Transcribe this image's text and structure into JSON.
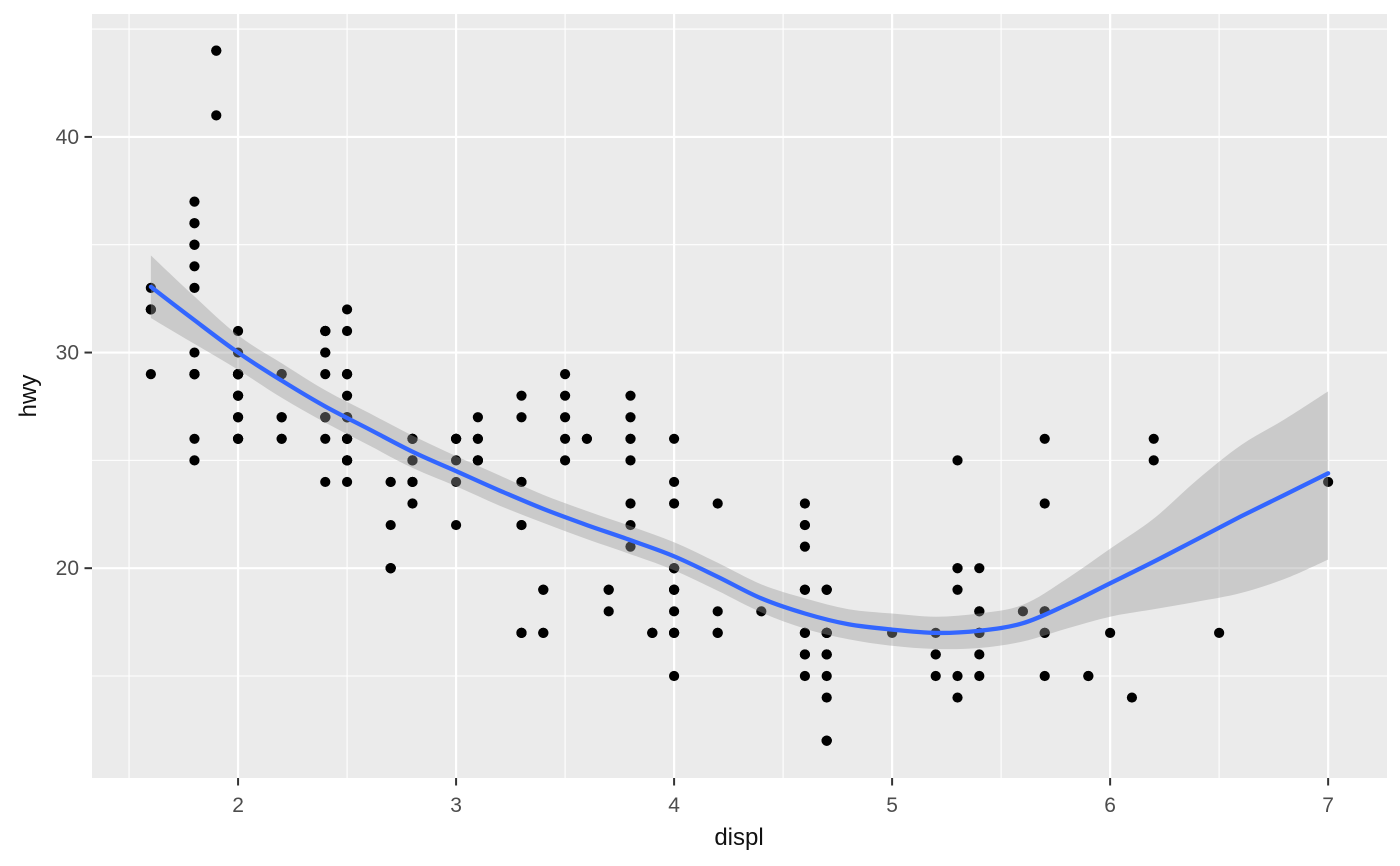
{
  "chart_data": {
    "type": "scatter",
    "title": "",
    "xlabel": "displ",
    "ylabel": "hwy",
    "xlim": [
      1.33,
      7.27
    ],
    "ylim": [
      10.27,
      45.7
    ],
    "x_ticks": [
      2,
      3,
      4,
      5,
      6,
      7
    ],
    "y_ticks": [
      20,
      30,
      40
    ],
    "x_minor_ticks": [
      1.5,
      2.5,
      3.5,
      4.5,
      5.5,
      6.5
    ],
    "y_minor_ticks": [
      15,
      25,
      35,
      45
    ],
    "grid": "major+minor white on grey panel",
    "legend": "none",
    "colors": {
      "point": "#000000",
      "smooth_line": "#3366FF",
      "confidence_band": "rgba(153,153,153,0.4)",
      "panel_background": "#EBEBEB",
      "gridline": "#FFFFFF",
      "tick_label": "#4D4D4D",
      "tick_mark": "#333333",
      "axis_title": "#111111"
    },
    "points": [
      [
        1.6,
        33
      ],
      [
        1.6,
        32
      ],
      [
        1.6,
        32
      ],
      [
        1.6,
        29
      ],
      [
        1.6,
        32
      ],
      [
        1.8,
        29
      ],
      [
        1.8,
        29
      ],
      [
        1.8,
        26
      ],
      [
        1.8,
        25
      ],
      [
        1.8,
        34
      ],
      [
        1.8,
        36
      ],
      [
        1.8,
        36
      ],
      [
        1.8,
        30
      ],
      [
        1.8,
        33
      ],
      [
        1.8,
        35
      ],
      [
        1.8,
        37
      ],
      [
        1.8,
        35
      ],
      [
        1.8,
        29
      ],
      [
        1.8,
        29
      ],
      [
        1.9,
        44
      ],
      [
        1.9,
        44
      ],
      [
        1.9,
        41
      ],
      [
        2.0,
        31
      ],
      [
        2.0,
        30
      ],
      [
        2.0,
        28
      ],
      [
        2.0,
        27
      ],
      [
        2.0,
        29
      ],
      [
        2.0,
        26
      ],
      [
        2.0,
        29
      ],
      [
        2.0,
        28
      ],
      [
        2.0,
        27
      ],
      [
        2.0,
        29
      ],
      [
        2.0,
        26
      ],
      [
        2.0,
        29
      ],
      [
        2.0,
        29
      ],
      [
        2.0,
        29
      ],
      [
        2.0,
        26
      ],
      [
        2.0,
        29
      ],
      [
        2.0,
        29
      ],
      [
        2.0,
        29
      ],
      [
        2.0,
        26
      ],
      [
        2.0,
        28
      ],
      [
        2.0,
        29
      ],
      [
        2.2,
        29
      ],
      [
        2.2,
        27
      ],
      [
        2.2,
        27
      ],
      [
        2.2,
        29
      ],
      [
        2.2,
        26
      ],
      [
        2.2,
        26
      ],
      [
        2.4,
        27
      ],
      [
        2.4,
        30
      ],
      [
        2.4,
        26
      ],
      [
        2.4,
        27
      ],
      [
        2.4,
        30
      ],
      [
        2.4,
        31
      ],
      [
        2.4,
        24
      ],
      [
        2.4,
        31
      ],
      [
        2.4,
        31
      ],
      [
        2.4,
        31
      ],
      [
        2.4,
        31
      ],
      [
        2.4,
        29
      ],
      [
        2.4,
        27
      ],
      [
        2.5,
        26
      ],
      [
        2.5,
        26
      ],
      [
        2.5,
        31
      ],
      [
        2.5,
        32
      ],
      [
        2.5,
        25
      ],
      [
        2.5,
        24
      ],
      [
        2.5,
        27
      ],
      [
        2.5,
        25
      ],
      [
        2.5,
        26
      ],
      [
        2.5,
        26
      ],
      [
        2.5,
        26
      ],
      [
        2.5,
        25
      ],
      [
        2.5,
        27
      ],
      [
        2.5,
        25
      ],
      [
        2.5,
        27
      ],
      [
        2.5,
        29
      ],
      [
        2.5,
        29
      ],
      [
        2.5,
        28
      ],
      [
        2.5,
        29
      ],
      [
        2.7,
        24
      ],
      [
        2.7,
        24
      ],
      [
        2.7,
        20
      ],
      [
        2.7,
        20
      ],
      [
        2.7,
        20
      ],
      [
        2.7,
        20
      ],
      [
        2.7,
        22
      ],
      [
        2.8,
        26
      ],
      [
        2.8,
        26
      ],
      [
        2.8,
        25
      ],
      [
        2.8,
        25
      ],
      [
        2.8,
        24
      ],
      [
        2.8,
        24
      ],
      [
        2.8,
        23
      ],
      [
        2.8,
        24
      ],
      [
        2.8,
        26
      ],
      [
        2.8,
        26
      ],
      [
        3.0,
        24
      ],
      [
        3.0,
        26
      ],
      [
        3.0,
        25
      ],
      [
        3.0,
        26
      ],
      [
        3.0,
        26
      ],
      [
        3.0,
        26
      ],
      [
        3.0,
        22
      ],
      [
        3.1,
        27
      ],
      [
        3.1,
        25
      ],
      [
        3.1,
        25
      ],
      [
        3.1,
        25
      ],
      [
        3.1,
        26
      ],
      [
        3.1,
        26
      ],
      [
        3.3,
        22
      ],
      [
        3.3,
        22
      ],
      [
        3.3,
        24
      ],
      [
        3.3,
        24
      ],
      [
        3.3,
        17
      ],
      [
        3.3,
        28
      ],
      [
        3.3,
        17
      ],
      [
        3.3,
        17
      ],
      [
        3.3,
        27
      ],
      [
        3.4,
        19
      ],
      [
        3.4,
        17
      ],
      [
        3.4,
        17
      ],
      [
        3.4,
        19
      ],
      [
        3.5,
        29
      ],
      [
        3.5,
        27
      ],
      [
        3.5,
        26
      ],
      [
        3.5,
        25
      ],
      [
        3.5,
        28
      ],
      [
        3.6,
        26
      ],
      [
        3.6,
        26
      ],
      [
        3.7,
        19
      ],
      [
        3.7,
        18
      ],
      [
        3.7,
        19
      ],
      [
        3.8,
        22
      ],
      [
        3.8,
        21
      ],
      [
        3.8,
        23
      ],
      [
        3.8,
        26
      ],
      [
        3.8,
        25
      ],
      [
        3.8,
        26
      ],
      [
        3.8,
        27
      ],
      [
        3.8,
        28
      ],
      [
        3.9,
        17
      ],
      [
        3.9,
        17
      ],
      [
        3.9,
        17
      ],
      [
        4.0,
        23
      ],
      [
        4.0,
        17
      ],
      [
        4.0,
        19
      ],
      [
        4.0,
        17
      ],
      [
        4.0,
        19
      ],
      [
        4.0,
        26
      ],
      [
        4.0,
        24
      ],
      [
        4.0,
        20
      ],
      [
        4.0,
        15
      ],
      [
        4.0,
        17
      ],
      [
        4.0,
        19
      ],
      [
        4.0,
        20
      ],
      [
        4.0,
        20
      ],
      [
        4.0,
        18
      ],
      [
        4.0,
        20
      ],
      [
        4.2,
        23
      ],
      [
        4.2,
        17
      ],
      [
        4.2,
        17
      ],
      [
        4.2,
        18
      ],
      [
        4.4,
        18
      ],
      [
        4.6,
        17
      ],
      [
        4.6,
        19
      ],
      [
        4.6,
        16
      ],
      [
        4.6,
        16
      ],
      [
        4.6,
        17
      ],
      [
        4.6,
        21
      ],
      [
        4.6,
        22
      ],
      [
        4.6,
        23
      ],
      [
        4.6,
        22
      ],
      [
        4.6,
        15
      ],
      [
        4.6,
        19
      ],
      [
        4.7,
        19
      ],
      [
        4.7,
        19
      ],
      [
        4.7,
        12
      ],
      [
        4.7,
        17
      ],
      [
        4.7,
        16
      ],
      [
        4.7,
        17
      ],
      [
        4.7,
        12
      ],
      [
        4.7,
        17
      ],
      [
        4.7,
        16
      ],
      [
        4.7,
        12
      ],
      [
        4.7,
        17
      ],
      [
        4.7,
        17
      ],
      [
        4.7,
        16
      ],
      [
        4.7,
        17
      ],
      [
        4.7,
        14
      ],
      [
        4.7,
        19
      ],
      [
        4.7,
        15
      ],
      [
        4.7,
        17
      ],
      [
        5.0,
        17
      ],
      [
        5.2,
        16
      ],
      [
        5.2,
        15
      ],
      [
        5.2,
        16
      ],
      [
        5.2,
        17
      ],
      [
        5.3,
        20
      ],
      [
        5.3,
        15
      ],
      [
        5.3,
        20
      ],
      [
        5.3,
        19
      ],
      [
        5.3,
        14
      ],
      [
        5.3,
        25
      ],
      [
        5.4,
        17
      ],
      [
        5.4,
        18
      ],
      [
        5.4,
        15
      ],
      [
        5.4,
        17
      ],
      [
        5.4,
        20
      ],
      [
        5.4,
        17
      ],
      [
        5.4,
        16
      ],
      [
        5.4,
        18
      ],
      [
        5.6,
        18
      ],
      [
        5.7,
        17
      ],
      [
        5.7,
        26
      ],
      [
        5.7,
        23
      ],
      [
        5.7,
        15
      ],
      [
        5.7,
        18
      ],
      [
        5.7,
        17
      ],
      [
        5.7,
        18
      ],
      [
        5.7,
        18
      ],
      [
        5.9,
        15
      ],
      [
        5.9,
        15
      ],
      [
        6.0,
        17
      ],
      [
        6.1,
        14
      ],
      [
        6.2,
        26
      ],
      [
        6.2,
        25
      ],
      [
        6.5,
        17
      ],
      [
        7.0,
        24
      ]
    ],
    "smooth": {
      "method": "loess",
      "x": [
        1.6,
        1.8,
        2.0,
        2.2,
        2.4,
        2.6,
        2.8,
        3.0,
        3.2,
        3.4,
        3.6,
        3.8,
        4.0,
        4.2,
        4.4,
        4.6,
        4.8,
        5.0,
        5.2,
        5.4,
        5.6,
        5.8,
        6.0,
        6.2,
        6.4,
        6.6,
        6.8,
        7.0
      ],
      "y": [
        33.05,
        31.5,
        30.0,
        28.7,
        27.5,
        26.45,
        25.4,
        24.5,
        23.6,
        22.75,
        22.0,
        21.3,
        20.55,
        19.6,
        18.6,
        17.9,
        17.4,
        17.15,
        17.0,
        17.1,
        17.45,
        18.3,
        19.3,
        20.3,
        21.35,
        22.4,
        23.4,
        24.4
      ],
      "ymin": [
        31.6,
        30.4,
        29.2,
        27.9,
        26.75,
        25.7,
        24.65,
        23.8,
        22.9,
        22.1,
        21.35,
        20.65,
        19.9,
        18.95,
        17.95,
        17.2,
        16.7,
        16.4,
        16.25,
        16.3,
        16.6,
        17.2,
        17.75,
        18.1,
        18.45,
        18.85,
        19.5,
        20.4
      ],
      "ymax": [
        34.5,
        32.6,
        30.8,
        29.5,
        28.25,
        27.2,
        26.15,
        25.2,
        24.3,
        23.4,
        22.65,
        21.95,
        21.2,
        20.25,
        19.25,
        18.6,
        18.1,
        17.9,
        17.75,
        17.9,
        18.3,
        19.5,
        20.9,
        22.3,
        24.1,
        25.7,
        26.9,
        28.2
      ]
    }
  }
}
